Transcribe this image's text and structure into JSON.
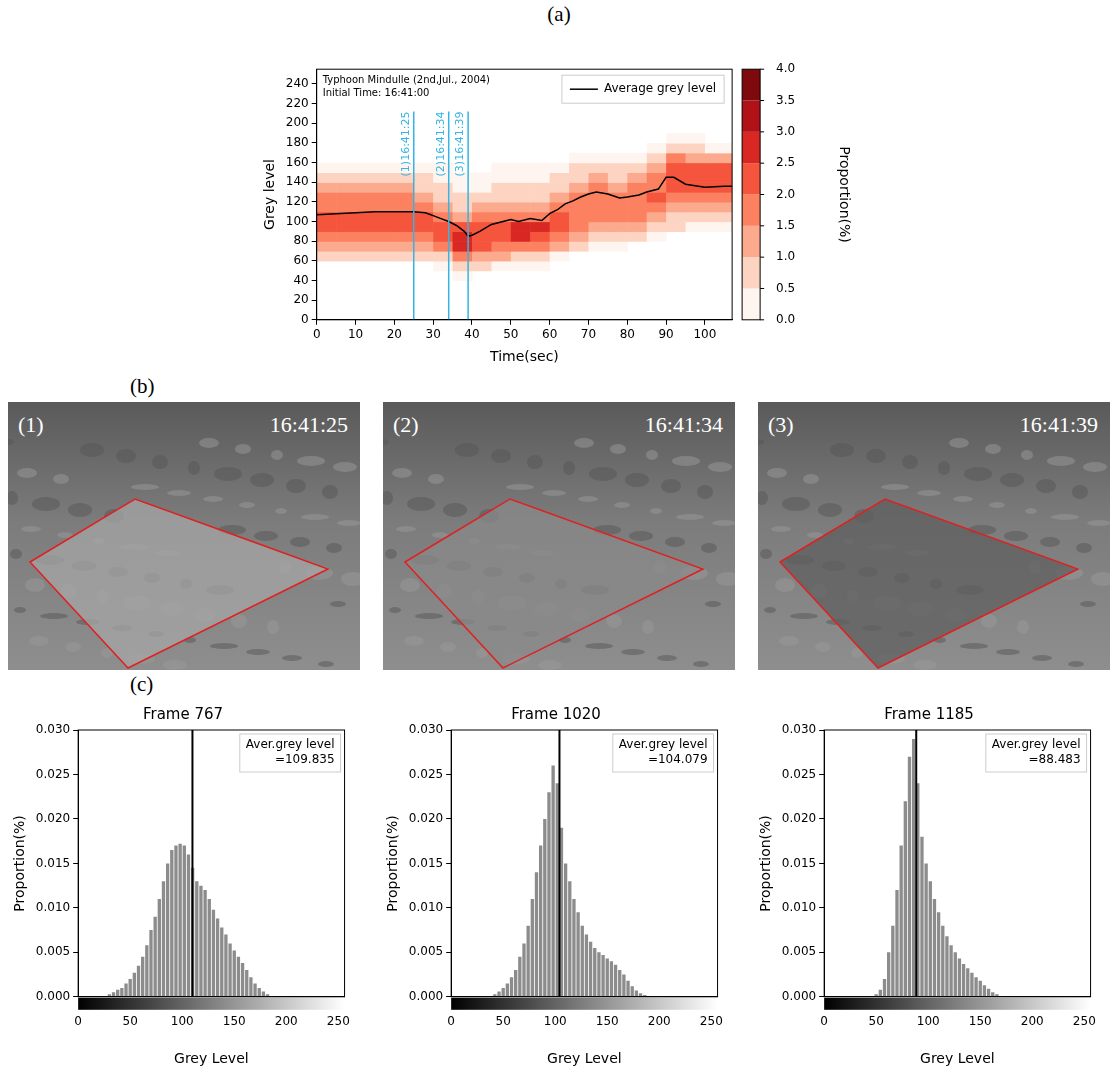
{
  "panel_labels": [
    "(a)",
    "(b)",
    "(c)"
  ],
  "images": [
    {
      "label": "(1)",
      "time": "16:41:25"
    },
    {
      "label": "(2)",
      "time": "16:41:34"
    },
    {
      "label": "(3)",
      "time": "16:41:39"
    }
  ],
  "chart_data": [
    {
      "type": "heatmap",
      "annotations": [
        "Typhoon Mindulle (2nd,Jul., 2004)",
        "Initial Time: 16:41:00"
      ],
      "x_label": "Time(sec)",
      "y_label": "Grey level",
      "xlim": [
        0,
        107
      ],
      "xticks": [
        0,
        10,
        20,
        30,
        40,
        50,
        60,
        70,
        80,
        90,
        100
      ],
      "ylim": [
        0,
        255
      ],
      "yticks": [
        0,
        20,
        40,
        60,
        80,
        100,
        120,
        140,
        160,
        180,
        200,
        220,
        240
      ],
      "grid": false,
      "legend": "upper right",
      "x_bins": [
        0,
        5,
        10,
        15,
        20,
        25,
        30,
        35,
        40,
        45,
        50,
        55,
        60,
        65,
        70,
        75,
        80,
        85,
        90,
        95,
        100,
        107
      ],
      "y_bins": [
        40,
        50,
        60,
        70,
        80,
        90,
        100,
        110,
        120,
        130,
        140,
        150,
        160,
        170,
        180,
        190
      ],
      "cells": [
        [
          0,
          0,
          0,
          0,
          0,
          0,
          0,
          0.1,
          0,
          0,
          0,
          0,
          0,
          0,
          0,
          0,
          0,
          0,
          0,
          0,
          0
        ],
        [
          0,
          0,
          0,
          0,
          0,
          0,
          0.2,
          0.6,
          0.5,
          0.4,
          0.3,
          0.3,
          0,
          0,
          0,
          0,
          0,
          0,
          0,
          0,
          0
        ],
        [
          0.5,
          0.5,
          0.5,
          0.5,
          0.5,
          0.6,
          0.8,
          1.5,
          1.2,
          1.0,
          0.8,
          0.8,
          0.4,
          0,
          0,
          0,
          0,
          0,
          0,
          0,
          0
        ],
        [
          1.0,
          1.0,
          1.0,
          1.0,
          1.0,
          1.2,
          1.5,
          2.5,
          2.0,
          1.8,
          1.6,
          1.5,
          1.0,
          0.5,
          0.3,
          0.4,
          0,
          0,
          0,
          0,
          0
        ],
        [
          1.5,
          1.5,
          1.5,
          1.5,
          1.5,
          1.8,
          2.0,
          2.8,
          2.3,
          2.3,
          2.5,
          2.4,
          1.6,
          1.0,
          0.8,
          0.9,
          0.6,
          0.4,
          0,
          0,
          0
        ],
        [
          2.0,
          2.0,
          2.0,
          2.0,
          2.0,
          2.0,
          2.2,
          2.0,
          2.0,
          2.2,
          2.6,
          2.5,
          2.0,
          1.5,
          1.3,
          1.4,
          1.1,
          0.8,
          0.5,
          0.4,
          0.4
        ],
        [
          2.0,
          2.0,
          2.0,
          2.0,
          2.0,
          2.0,
          1.8,
          1.3,
          1.5,
          1.6,
          1.7,
          1.8,
          2.0,
          1.8,
          1.6,
          1.7,
          1.5,
          1.3,
          0.9,
          0.9,
          0.9
        ],
        [
          1.8,
          1.8,
          1.8,
          1.8,
          1.8,
          1.6,
          1.3,
          0.8,
          1.0,
          1.1,
          1.1,
          1.2,
          1.7,
          1.9,
          1.8,
          1.8,
          1.8,
          1.7,
          1.3,
          1.3,
          1.3
        ],
        [
          1.5,
          1.5,
          1.5,
          1.5,
          1.5,
          1.2,
          0.9,
          0.5,
          0.6,
          0.7,
          0.8,
          0.8,
          1.2,
          1.7,
          1.8,
          1.7,
          1.9,
          2.0,
          1.7,
          1.7,
          1.7
        ],
        [
          1.0,
          1.0,
          1.0,
          1.0,
          1.0,
          0.8,
          0.6,
          0.3,
          0.4,
          0.5,
          0.5,
          0.6,
          0.8,
          1.3,
          1.5,
          1.4,
          1.6,
          1.9,
          2.0,
          2.0,
          2.0
        ],
        [
          0.7,
          0.7,
          0.7,
          0.7,
          0.7,
          0.5,
          0.3,
          0.1,
          0.2,
          0.3,
          0.3,
          0.3,
          0.5,
          0.9,
          1.0,
          0.9,
          1.1,
          1.5,
          2.3,
          2.2,
          2.2
        ],
        [
          0.3,
          0.3,
          0.3,
          0.3,
          0.3,
          0.2,
          0.1,
          0,
          0,
          0.1,
          0.1,
          0.1,
          0.2,
          0.5,
          0.6,
          0.5,
          0.7,
          1.0,
          2.2,
          2.0,
          2.0
        ],
        [
          0,
          0,
          0,
          0,
          0,
          0,
          0,
          0,
          0,
          0,
          0,
          0,
          0,
          0.2,
          0.3,
          0.2,
          0.3,
          0.6,
          1.5,
          1.3,
          1.2
        ],
        [
          0,
          0,
          0,
          0,
          0,
          0,
          0,
          0,
          0,
          0,
          0,
          0,
          0,
          0,
          0,
          0,
          0,
          0.3,
          0.8,
          0.5,
          0.4
        ],
        [
          0,
          0,
          0,
          0,
          0,
          0,
          0,
          0,
          0,
          0,
          0,
          0,
          0,
          0,
          0,
          0,
          0,
          0,
          0.3,
          0.1,
          0
        ]
      ],
      "colorbar": {
        "label": "Proportion(%)",
        "range": [
          0,
          4
        ],
        "ticks": [
          {
            "value": 0,
            "label": "0.0"
          },
          {
            "value": 0.5,
            "label": "0.5"
          },
          {
            "value": 1,
            "label": "1.0"
          },
          {
            "value": 1.5,
            "label": "1.5"
          },
          {
            "value": 2,
            "label": "2.0"
          },
          {
            "value": 2.5,
            "label": "2.5"
          },
          {
            "value": 3,
            "label": "3.0"
          },
          {
            "value": 3.5,
            "label": "3.5"
          },
          {
            "value": 4,
            "label": "4.0"
          }
        ],
        "colors": [
          "#fff5f0",
          "#fdd4c2",
          "#fcaa8e",
          "#fc8161",
          "#f5553c",
          "#d92723",
          "#b11218",
          "#7f0a0e"
        ]
      },
      "series": [
        {
          "name": "Average grey level",
          "type": "line",
          "color": "#000000",
          "x": [
            0,
            5,
            10,
            15,
            20,
            25,
            28,
            30,
            32,
            34,
            36,
            38,
            39,
            40,
            42,
            45,
            48,
            50,
            52,
            55,
            58,
            60,
            62,
            64,
            66,
            68,
            70,
            72,
            75,
            78,
            80,
            83,
            85,
            88,
            90,
            92,
            95,
            100,
            105,
            107
          ],
          "values": [
            107,
            108,
            109,
            110,
            110,
            110,
            109,
            106,
            103,
            100,
            96,
            90,
            85,
            86,
            90,
            97,
            100,
            102,
            100,
            103,
            101,
            108,
            112,
            118,
            121,
            125,
            128,
            130,
            128,
            124,
            125,
            127,
            130,
            133,
            145,
            145,
            138,
            135,
            136,
            136
          ]
        }
      ],
      "vlines": {
        "x": [
          25,
          34,
          39
        ],
        "labels": [
          "(1)16:41:25",
          "(2)16:41:34",
          "(3)16:41:39"
        ],
        "color": "#33b5e5",
        "ymax": 212
      }
    },
    {
      "type": "histogram",
      "title": "Frame 767",
      "x_label": "Grey Level",
      "y_label": "Proportion(%)",
      "color": "#8c8c8c",
      "grid": false,
      "xlim": [
        0,
        256
      ],
      "xticks": [
        0,
        50,
        100,
        150,
        200,
        250
      ],
      "ylim": [
        0,
        0.03
      ],
      "yticks": [
        {
          "value": 0,
          "label": "0.000"
        },
        {
          "value": 0.005,
          "label": "0.005"
        },
        {
          "value": 0.01,
          "label": "0.010"
        },
        {
          "value": 0.015,
          "label": "0.015"
        },
        {
          "value": 0.02,
          "label": "0.020"
        },
        {
          "value": 0.025,
          "label": "0.025"
        },
        {
          "value": 0.03,
          "label": "0.030"
        }
      ],
      "bins": [
        0,
        4,
        8,
        12,
        16,
        20,
        24,
        28,
        32,
        36,
        40,
        44,
        48,
        52,
        56,
        60,
        64,
        68,
        72,
        76,
        80,
        84,
        88,
        92,
        96,
        100,
        104,
        108,
        112,
        116,
        120,
        124,
        128,
        132,
        136,
        140,
        144,
        148,
        152,
        156,
        160,
        164,
        168,
        172,
        176,
        180,
        184,
        188,
        192,
        196,
        200,
        204,
        208,
        212,
        216,
        220,
        224,
        228,
        232,
        236,
        240,
        244,
        248,
        252,
        256
      ],
      "counts": [
        0,
        0,
        0,
        0,
        0,
        0,
        0,
        0.0003,
        0.0005,
        0.0008,
        0.001,
        0.0015,
        0.002,
        0.0027,
        0.0035,
        0.0045,
        0.0058,
        0.0075,
        0.009,
        0.011,
        0.013,
        0.015,
        0.0165,
        0.017,
        0.0172,
        0.017,
        0.016,
        0.0145,
        0.013,
        0.0125,
        0.012,
        0.011,
        0.0098,
        0.0088,
        0.0078,
        0.007,
        0.006,
        0.0052,
        0.0045,
        0.0038,
        0.003,
        0.0022,
        0.0015,
        0.001,
        0.0006,
        0.0003,
        0.0001,
        0,
        0,
        0,
        0,
        0,
        0,
        0,
        0,
        0,
        0,
        0,
        0,
        0,
        0,
        0,
        0,
        0
      ],
      "mean": 109.835,
      "annotation": [
        "Aver.grey level",
        "=109.835"
      ]
    },
    {
      "type": "histogram",
      "title": "Frame 1020",
      "x_label": "Grey Level",
      "y_label": "Proportion(%)",
      "color": "#8c8c8c",
      "grid": false,
      "xlim": [
        0,
        256
      ],
      "xticks": [
        0,
        50,
        100,
        150,
        200,
        250
      ],
      "ylim": [
        0,
        0.03
      ],
      "yticks": [
        {
          "value": 0,
          "label": "0.000"
        },
        {
          "value": 0.005,
          "label": "0.005"
        },
        {
          "value": 0.01,
          "label": "0.010"
        },
        {
          "value": 0.015,
          "label": "0.015"
        },
        {
          "value": 0.02,
          "label": "0.020"
        },
        {
          "value": 0.025,
          "label": "0.025"
        },
        {
          "value": 0.03,
          "label": "0.030"
        }
      ],
      "bins": [
        0,
        4,
        8,
        12,
        16,
        20,
        24,
        28,
        32,
        36,
        40,
        44,
        48,
        52,
        56,
        60,
        64,
        68,
        72,
        76,
        80,
        84,
        88,
        92,
        96,
        100,
        104,
        108,
        112,
        116,
        120,
        124,
        128,
        132,
        136,
        140,
        144,
        148,
        152,
        156,
        160,
        164,
        168,
        172,
        176,
        180,
        184,
        188,
        192,
        196,
        200,
        204,
        208,
        212,
        216,
        220,
        224,
        228,
        232,
        236,
        240,
        244,
        248,
        252,
        256
      ],
      "counts": [
        0,
        0,
        0,
        0,
        0,
        0,
        0,
        0,
        0,
        0,
        0.0003,
        0.0006,
        0.001,
        0.0015,
        0.0022,
        0.003,
        0.0045,
        0.006,
        0.008,
        0.011,
        0.014,
        0.017,
        0.02,
        0.023,
        0.026,
        0.024,
        0.019,
        0.015,
        0.013,
        0.011,
        0.0095,
        0.008,
        0.007,
        0.0062,
        0.0055,
        0.005,
        0.0047,
        0.0043,
        0.004,
        0.0036,
        0.003,
        0.0025,
        0.0018,
        0.0012,
        0.0007,
        0.0004,
        0.0002,
        0,
        0,
        0,
        0,
        0,
        0,
        0,
        0,
        0,
        0,
        0,
        0,
        0,
        0,
        0,
        0,
        0
      ],
      "mean": 104.079,
      "annotation": [
        "Aver.grey level",
        "=104.079"
      ]
    },
    {
      "type": "histogram",
      "title": "Frame 1185",
      "x_label": "Grey Level",
      "y_label": "Proportion(%)",
      "color": "#8c8c8c",
      "grid": false,
      "xlim": [
        0,
        256
      ],
      "xticks": [
        0,
        50,
        100,
        150,
        200,
        250
      ],
      "ylim": [
        0,
        0.03
      ],
      "yticks": [
        {
          "value": 0,
          "label": "0.000"
        },
        {
          "value": 0.005,
          "label": "0.005"
        },
        {
          "value": 0.01,
          "label": "0.010"
        },
        {
          "value": 0.015,
          "label": "0.015"
        },
        {
          "value": 0.02,
          "label": "0.020"
        },
        {
          "value": 0.025,
          "label": "0.025"
        },
        {
          "value": 0.03,
          "label": "0.030"
        }
      ],
      "bins": [
        0,
        4,
        8,
        12,
        16,
        20,
        24,
        28,
        32,
        36,
        40,
        44,
        48,
        52,
        56,
        60,
        64,
        68,
        72,
        76,
        80,
        84,
        88,
        92,
        96,
        100,
        104,
        108,
        112,
        116,
        120,
        124,
        128,
        132,
        136,
        140,
        144,
        148,
        152,
        156,
        160,
        164,
        168,
        172,
        176,
        180,
        184,
        188,
        192,
        196,
        200,
        204,
        208,
        212,
        216,
        220,
        224,
        228,
        232,
        236,
        240,
        244,
        248,
        252,
        256
      ],
      "counts": [
        0,
        0,
        0,
        0,
        0,
        0,
        0,
        0,
        0,
        0,
        0,
        0,
        0.0003,
        0.0008,
        0.002,
        0.005,
        0.008,
        0.012,
        0.017,
        0.022,
        0.027,
        0.029,
        0.024,
        0.018,
        0.015,
        0.013,
        0.011,
        0.0095,
        0.008,
        0.0068,
        0.0058,
        0.005,
        0.0043,
        0.0037,
        0.0032,
        0.0027,
        0.0022,
        0.0018,
        0.0013,
        0.0009,
        0.0005,
        0.0003,
        0.0001,
        0,
        0,
        0,
        0,
        0,
        0,
        0,
        0,
        0,
        0,
        0,
        0,
        0,
        0,
        0,
        0,
        0,
        0,
        0,
        0,
        0
      ],
      "mean": 88.483,
      "annotation": [
        "Aver.grey level",
        "=88.483"
      ]
    }
  ]
}
